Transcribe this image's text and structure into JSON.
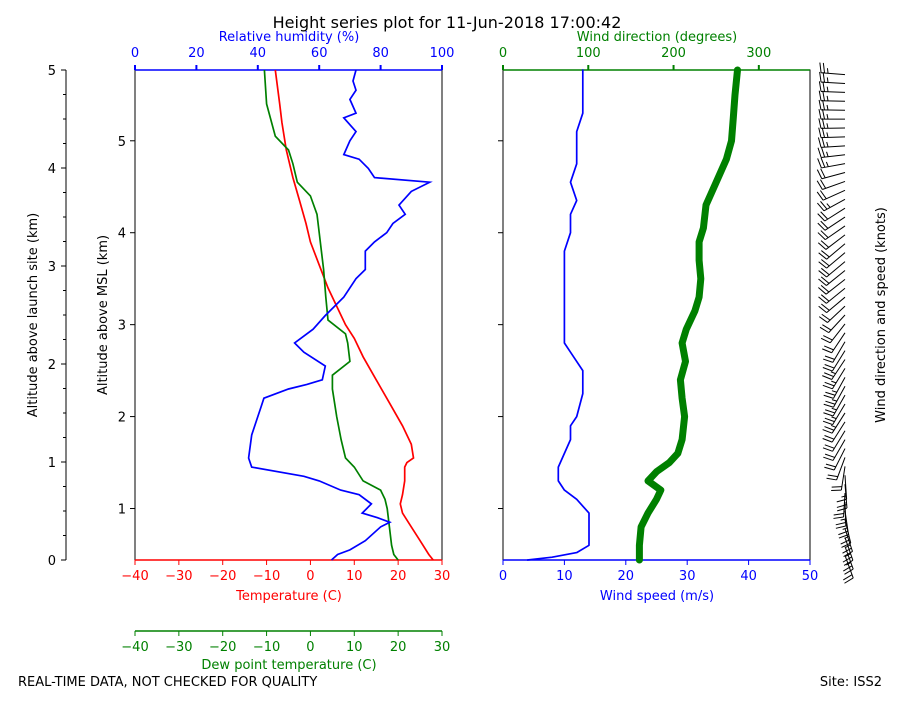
{
  "chart_data": [
    {
      "type": "line",
      "title": "Height series plot for 11-Jun-2018 17:00:42",
      "outer_ylabel": "Altitude above launch site (km)",
      "outer_yticks": [
        0,
        1,
        2,
        3,
        4,
        5
      ],
      "ylabel": "Altitude above MSL (km)",
      "ylim": [
        0.44,
        5.77
      ],
      "yticks": [
        1,
        2,
        3,
        4,
        5
      ],
      "x_temperature": {
        "label": "Temperature (C)",
        "ticks": [
          -40,
          -30,
          -20,
          -10,
          0,
          10,
          20,
          30
        ],
        "lim": [
          -40,
          30
        ],
        "color": "#ff0000"
      },
      "x_dewpoint": {
        "label": "Dew point temperature (C)",
        "ticks": [
          -40,
          -30,
          -20,
          -10,
          0,
          10,
          20,
          30
        ],
        "lim": [
          -40,
          30
        ],
        "color": "#008000"
      },
      "x_humidity": {
        "label": "Relative humidity (%)",
        "ticks": [
          0,
          20,
          40,
          60,
          80,
          100
        ],
        "lim": [
          0,
          100
        ],
        "color": "#0000ff"
      },
      "series": [
        {
          "name": "Temperature",
          "axis": "x_temperature",
          "color": "#ff0000",
          "points": [
            [
              28,
              0.44
            ],
            [
              27,
              0.5
            ],
            [
              25,
              0.65
            ],
            [
              23,
              0.8
            ],
            [
              21,
              0.95
            ],
            [
              20.5,
              1.05
            ],
            [
              21,
              1.15
            ],
            [
              21.5,
              1.3
            ],
            [
              21.5,
              1.45
            ],
            [
              22,
              1.5
            ],
            [
              23.5,
              1.55
            ],
            [
              23,
              1.7
            ],
            [
              21,
              1.9
            ],
            [
              18,
              2.15
            ],
            [
              15,
              2.4
            ],
            [
              12,
              2.65
            ],
            [
              10,
              2.85
            ],
            [
              8,
              3.0
            ],
            [
              6,
              3.2
            ],
            [
              4,
              3.4
            ],
            [
              2,
              3.65
            ],
            [
              0,
              3.9
            ],
            [
              -1,
              4.1
            ],
            [
              -2.5,
              4.35
            ],
            [
              -4,
              4.6
            ],
            [
              -5.5,
              4.9
            ],
            [
              -6.5,
              5.2
            ],
            [
              -7,
              5.4
            ],
            [
              -8,
              5.77
            ]
          ]
        },
        {
          "name": "Dew point temperature",
          "axis": "x_dewpoint",
          "color": "#008000",
          "points": [
            [
              20,
              0.44
            ],
            [
              19,
              0.5
            ],
            [
              18.5,
              0.6
            ],
            [
              18,
              0.8
            ],
            [
              17.5,
              1.0
            ],
            [
              17,
              1.1
            ],
            [
              16,
              1.2
            ],
            [
              12,
              1.3
            ],
            [
              10,
              1.45
            ],
            [
              8,
              1.55
            ],
            [
              7,
              1.75
            ],
            [
              6,
              2.0
            ],
            [
              5,
              2.3
            ],
            [
              5,
              2.45
            ],
            [
              9,
              2.6
            ],
            [
              8.5,
              2.8
            ],
            [
              8,
              2.9
            ],
            [
              4,
              3.05
            ],
            [
              3.5,
              3.3
            ],
            [
              3,
              3.6
            ],
            [
              2.5,
              3.8
            ],
            [
              2,
              4.0
            ],
            [
              1.5,
              4.2
            ],
            [
              0,
              4.4
            ],
            [
              -3,
              4.55
            ],
            [
              -4,
              4.75
            ],
            [
              -5,
              4.9
            ],
            [
              -8,
              5.05
            ],
            [
              -10,
              5.4
            ],
            [
              -10.5,
              5.77
            ]
          ]
        },
        {
          "name": "Relative humidity",
          "axis": "x_humidity",
          "color": "#0000ff",
          "points": [
            [
              64,
              0.44
            ],
            [
              66,
              0.5
            ],
            [
              70,
              0.55
            ],
            [
              75,
              0.65
            ],
            [
              80,
              0.8
            ],
            [
              83,
              0.85
            ],
            [
              79,
              0.9
            ],
            [
              74,
              0.95
            ],
            [
              77,
              1.05
            ],
            [
              73,
              1.15
            ],
            [
              67,
              1.2
            ],
            [
              60,
              1.3
            ],
            [
              55,
              1.35
            ],
            [
              38,
              1.45
            ],
            [
              37,
              1.55
            ],
            [
              38,
              1.8
            ],
            [
              40,
              2.0
            ],
            [
              41,
              2.1
            ],
            [
              42,
              2.2
            ],
            [
              50,
              2.3
            ],
            [
              56,
              2.35
            ],
            [
              61,
              2.4
            ],
            [
              62,
              2.55
            ],
            [
              55,
              2.7
            ],
            [
              52,
              2.8
            ],
            [
              58,
              2.95
            ],
            [
              62,
              3.1
            ],
            [
              68,
              3.3
            ],
            [
              72,
              3.5
            ],
            [
              75,
              3.6
            ],
            [
              75,
              3.8
            ],
            [
              78,
              3.9
            ],
            [
              82,
              4.0
            ],
            [
              84,
              4.1
            ],
            [
              88,
              4.2
            ],
            [
              86,
              4.3
            ],
            [
              90,
              4.45
            ],
            [
              96,
              4.55
            ],
            [
              78,
              4.6
            ],
            [
              76,
              4.7
            ],
            [
              73,
              4.8
            ],
            [
              68,
              4.85
            ],
            [
              70,
              5.0
            ],
            [
              72,
              5.1
            ],
            [
              68,
              5.25
            ],
            [
              72,
              5.3
            ],
            [
              70,
              5.45
            ],
            [
              72,
              5.55
            ],
            [
              71,
              5.65
            ],
            [
              72,
              5.77
            ]
          ]
        }
      ]
    },
    {
      "type": "line",
      "xlabel": "Wind speed (m/s)",
      "x2label": "Wind direction (degrees)",
      "xlim": [
        0,
        50
      ],
      "xticks": [
        0,
        10,
        20,
        30,
        40,
        50
      ],
      "x2lim": [
        0,
        360
      ],
      "x2ticks": [
        0,
        100,
        200,
        300
      ],
      "series": [
        {
          "name": "Wind speed",
          "axis": "x",
          "color": "#0000ff",
          "points": [
            [
              4,
              0.44
            ],
            [
              8,
              0.47
            ],
            [
              12,
              0.52
            ],
            [
              14,
              0.6
            ],
            [
              14,
              0.7
            ],
            [
              14,
              0.95
            ],
            [
              12,
              1.1
            ],
            [
              10,
              1.2
            ],
            [
              9,
              1.3
            ],
            [
              9,
              1.45
            ],
            [
              10,
              1.6
            ],
            [
              11,
              1.75
            ],
            [
              11,
              1.9
            ],
            [
              12,
              2.0
            ],
            [
              13,
              2.25
            ],
            [
              13,
              2.5
            ],
            [
              11,
              2.7
            ],
            [
              10,
              2.8
            ],
            [
              10,
              3.0
            ],
            [
              10,
              3.3
            ],
            [
              10,
              3.55
            ],
            [
              10,
              3.8
            ],
            [
              11,
              4.0
            ],
            [
              11,
              4.2
            ],
            [
              12,
              4.35
            ],
            [
              11,
              4.55
            ],
            [
              12,
              4.75
            ],
            [
              12,
              4.9
            ],
            [
              12,
              5.1
            ],
            [
              13,
              5.3
            ],
            [
              13,
              5.5
            ],
            [
              13,
              5.77
            ]
          ]
        },
        {
          "name": "Wind direction",
          "axis": "x2",
          "color": "#008000",
          "points": [
            [
              160,
              0.44
            ],
            [
              160,
              0.6
            ],
            [
              162,
              0.8
            ],
            [
              170,
              0.95
            ],
            [
              180,
              1.1
            ],
            [
              185,
              1.2
            ],
            [
              170,
              1.3
            ],
            [
              180,
              1.4
            ],
            [
              195,
              1.5
            ],
            [
              205,
              1.6
            ],
            [
              210,
              1.75
            ],
            [
              213,
              2.0
            ],
            [
              210,
              2.2
            ],
            [
              208,
              2.4
            ],
            [
              214,
              2.6
            ],
            [
              210,
              2.8
            ],
            [
              215,
              2.95
            ],
            [
              225,
              3.15
            ],
            [
              230,
              3.3
            ],
            [
              232,
              3.5
            ],
            [
              230,
              3.7
            ],
            [
              230,
              3.9
            ],
            [
              235,
              4.05
            ],
            [
              238,
              4.3
            ],
            [
              250,
              4.55
            ],
            [
              262,
              4.8
            ],
            [
              268,
              5.0
            ],
            [
              270,
              5.25
            ],
            [
              272,
              5.5
            ],
            [
              275,
              5.77
            ]
          ]
        }
      ]
    },
    {
      "type": "barbs",
      "ylabel": "Wind direction and speed (knots)"
    }
  ],
  "footer": {
    "left_note": "REAL-TIME DATA, NOT CHECKED FOR QUALITY",
    "site": "Site: ISS2"
  }
}
